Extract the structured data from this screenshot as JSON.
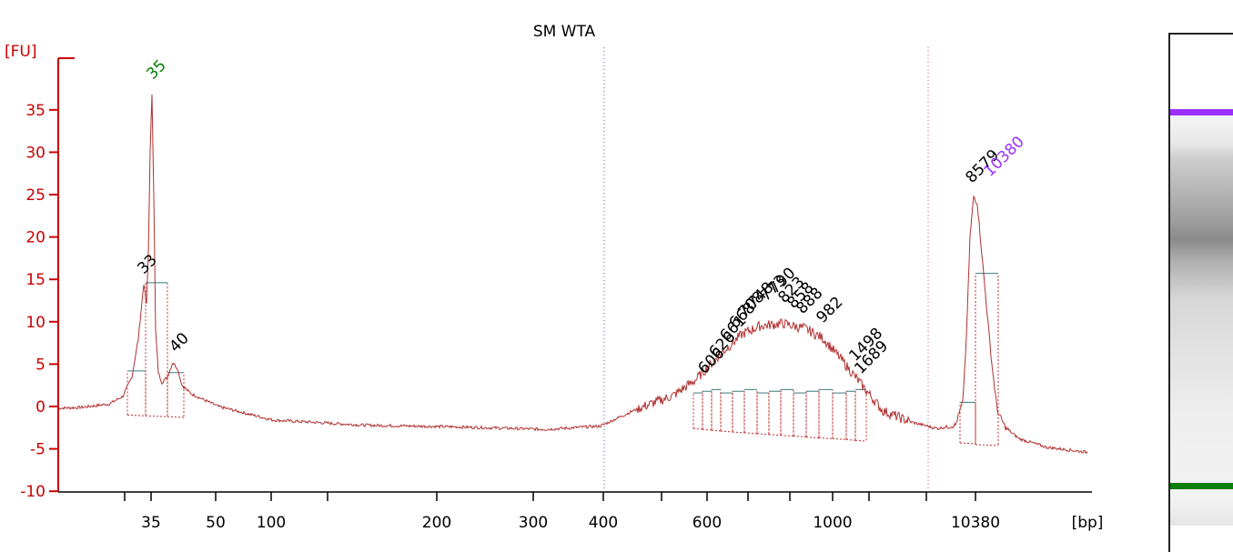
{
  "chart_data": {
    "type": "line",
    "title": "SM WTA",
    "ylabel": "[FU]",
    "xlabel": "[bp]",
    "ylim": [
      -10,
      40
    ],
    "y_ticks": [
      35,
      30,
      25,
      20,
      15,
      10,
      5,
      0,
      -5,
      -10
    ],
    "y_tick_labels": [
      "35",
      "30",
      "25",
      "20",
      "15",
      "10",
      "5",
      "0",
      "-5",
      "-10"
    ],
    "x_scale": "sizing ladder (non-linear)",
    "x_tick_labels": [
      "35",
      "50",
      "100",
      "200",
      "300",
      "400",
      "600",
      "1000",
      "10380"
    ],
    "grid": false,
    "colors": {
      "axis": "#cc0000",
      "trace": "#b03030",
      "lower_marker": "#008000",
      "upper_marker": "#9933ff",
      "peak_label": "#000000",
      "marker_band_green": "#0a7d0a",
      "marker_band_purple": "#9b30ff"
    },
    "peak_labels": [
      {
        "text": "35",
        "kind": "lower_marker"
      },
      {
        "text": "33",
        "kind": "peak"
      },
      {
        "text": "40",
        "kind": "peak"
      },
      {
        "text": "606",
        "kind": "peak"
      },
      {
        "text": "626",
        "kind": "peak"
      },
      {
        "text": "661",
        "kind": "peak"
      },
      {
        "text": "668",
        "kind": "peak"
      },
      {
        "text": "708",
        "kind": "peak"
      },
      {
        "text": "748",
        "kind": "peak"
      },
      {
        "text": "773",
        "kind": "peak"
      },
      {
        "text": "790",
        "kind": "peak"
      },
      {
        "text": "823",
        "kind": "peak"
      },
      {
        "text": "858",
        "kind": "peak"
      },
      {
        "text": "888",
        "kind": "peak"
      },
      {
        "text": "982",
        "kind": "peak"
      },
      {
        "text": "1498",
        "kind": "peak"
      },
      {
        "text": "1689",
        "kind": "peak"
      },
      {
        "text": "8579",
        "kind": "peak"
      },
      {
        "text": "10380",
        "kind": "upper_marker"
      }
    ]
  },
  "gel": {
    "bands": [
      {
        "name": "upper-marker",
        "color": "#9b30ff"
      },
      {
        "name": "smear",
        "color": "#909090"
      },
      {
        "name": "lower-marker",
        "color": "#0a7d0a"
      }
    ]
  }
}
